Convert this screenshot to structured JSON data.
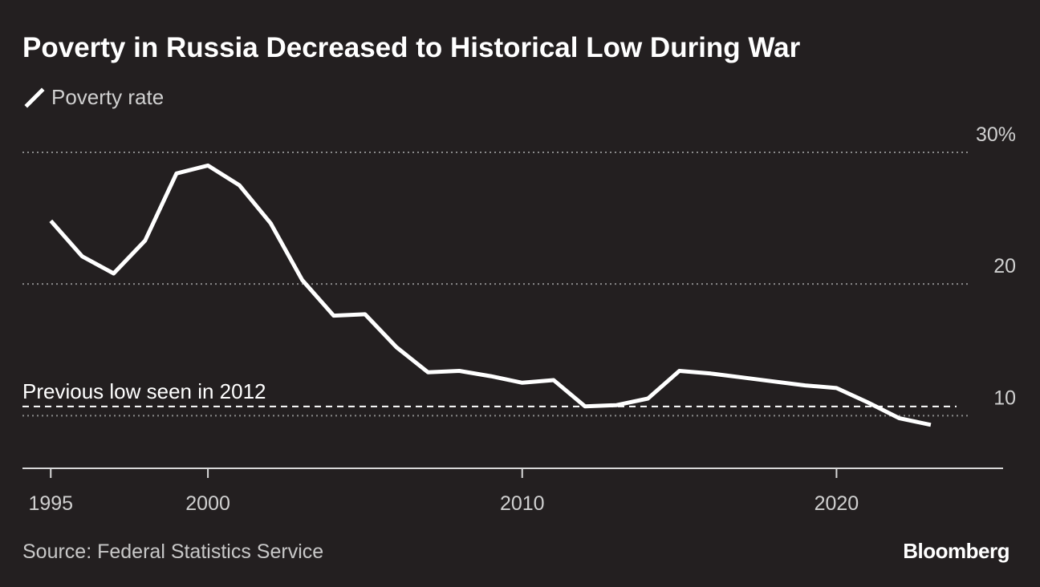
{
  "title": "Poverty in Russia Decreased to Historical Low During War",
  "legend": {
    "label": "Poverty rate"
  },
  "source": "Source: Federal Statistics Service",
  "brand": "Bloomberg",
  "colors": {
    "background": "#231f20",
    "line": "#ffffff",
    "grid": "#8a8a8a",
    "text": "#d0d0d0"
  },
  "chart_data": {
    "type": "line",
    "title": "Poverty in Russia Decreased to Historical Low During War",
    "xlabel": "",
    "ylabel": "",
    "xlim": [
      1994.1,
      2025.3
    ],
    "ylim": [
      6,
      30
    ],
    "x_ticks": [
      1995,
      2000,
      2010,
      2020
    ],
    "x_tick_labels": [
      "1995",
      "2000",
      "2010",
      "2020"
    ],
    "y_ticks": [
      10,
      20,
      30
    ],
    "y_tick_labels": [
      "10",
      "20",
      "30%"
    ],
    "grid": true,
    "series": [
      {
        "name": "Poverty rate",
        "x": [
          1995,
          1996,
          1997,
          1998,
          1999,
          2000,
          2001,
          2002,
          2003,
          2004,
          2005,
          2006,
          2007,
          2008,
          2009,
          2010,
          2011,
          2012,
          2013,
          2014,
          2015,
          2016,
          2017,
          2018,
          2019,
          2020,
          2021,
          2022,
          2023
        ],
        "values": [
          24.8,
          22.1,
          20.8,
          23.3,
          28.4,
          29.0,
          27.5,
          24.6,
          20.3,
          17.6,
          17.7,
          15.2,
          13.3,
          13.4,
          13.0,
          12.5,
          12.7,
          10.7,
          10.8,
          11.3,
          13.4,
          13.2,
          12.9,
          12.6,
          12.3,
          12.1,
          11.0,
          9.8,
          9.3
        ]
      }
    ],
    "reference_line": {
      "label": "Previous low seen in 2012",
      "value": 10.7,
      "style": "dashed"
    }
  }
}
